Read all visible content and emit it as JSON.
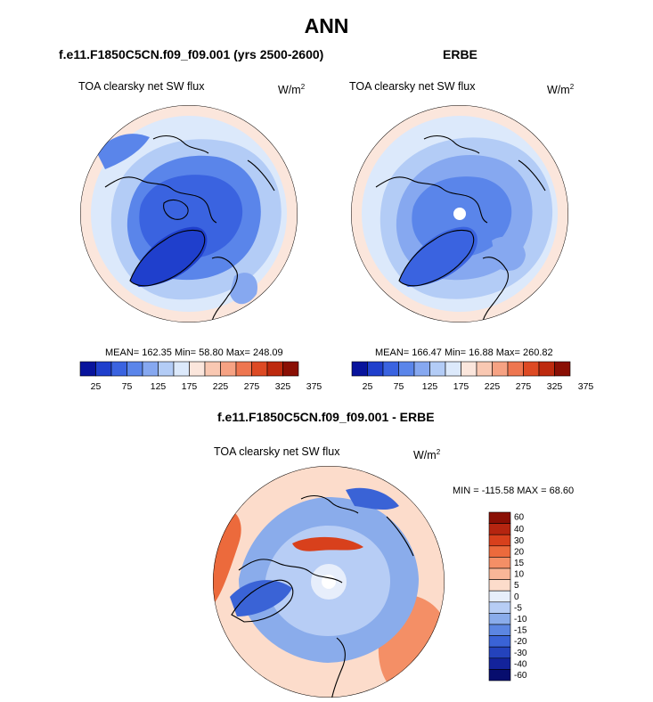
{
  "title": "ANN",
  "panels": [
    {
      "id": "model",
      "subtitle": "f.e11.F1850C5CN.f09_f09.001 (yrs 2500-2600)",
      "variable": "TOA clearsky net SW flux",
      "units_base": "W/m",
      "units_exp": "2",
      "stats": "MEAN= 162.35  Min=  58.80  Max= 248.09",
      "pole_hole": false,
      "colorbar_ticks": [
        "25",
        "75",
        "125",
        "175",
        "225",
        "275",
        "325",
        "375"
      ]
    },
    {
      "id": "obs",
      "subtitle": "ERBE",
      "variable": "TOA clearsky net SW flux",
      "units_base": "W/m",
      "units_exp": "2",
      "stats": "MEAN= 166.47  Min=  16.88  Max= 260.82",
      "pole_hole": true,
      "colorbar_ticks": [
        "25",
        "75",
        "125",
        "175",
        "225",
        "275",
        "325",
        "375"
      ]
    }
  ],
  "diff": {
    "subtitle": "f.e11.F1850C5CN.f09_f09.001 - ERBE",
    "variable": "TOA clearsky net SW flux",
    "units_base": "W/m",
    "units_exp": "2",
    "stats": "MIN = -115.58 MAX =  68.60",
    "colorbar_ticks": [
      "60",
      "40",
      "30",
      "20",
      "15",
      "10",
      "5",
      "0",
      "-5",
      "-10",
      "-15",
      "-20",
      "-30",
      "-40",
      "-60"
    ]
  },
  "colors": {
    "seq_scale": [
      "#08139c",
      "#1f3fcc",
      "#3a63e0",
      "#5a85ea",
      "#86a8f0",
      "#b3ccf6",
      "#dce9fb",
      "#fbe6dc",
      "#f9c8b2",
      "#f6a283",
      "#ee7650",
      "#dd4a24",
      "#bd2a0e",
      "#8a0f04"
    ],
    "div_scale": [
      "#8a0f04",
      "#b52510",
      "#d8401c",
      "#ec6a3c",
      "#f48f66",
      "#f9b698",
      "#fcdccb",
      "#e7eefb",
      "#b7cdf5",
      "#8aaceb",
      "#5c86e2",
      "#3a63d6",
      "#2443bc",
      "#13239b",
      "#070d6e"
    ]
  }
}
